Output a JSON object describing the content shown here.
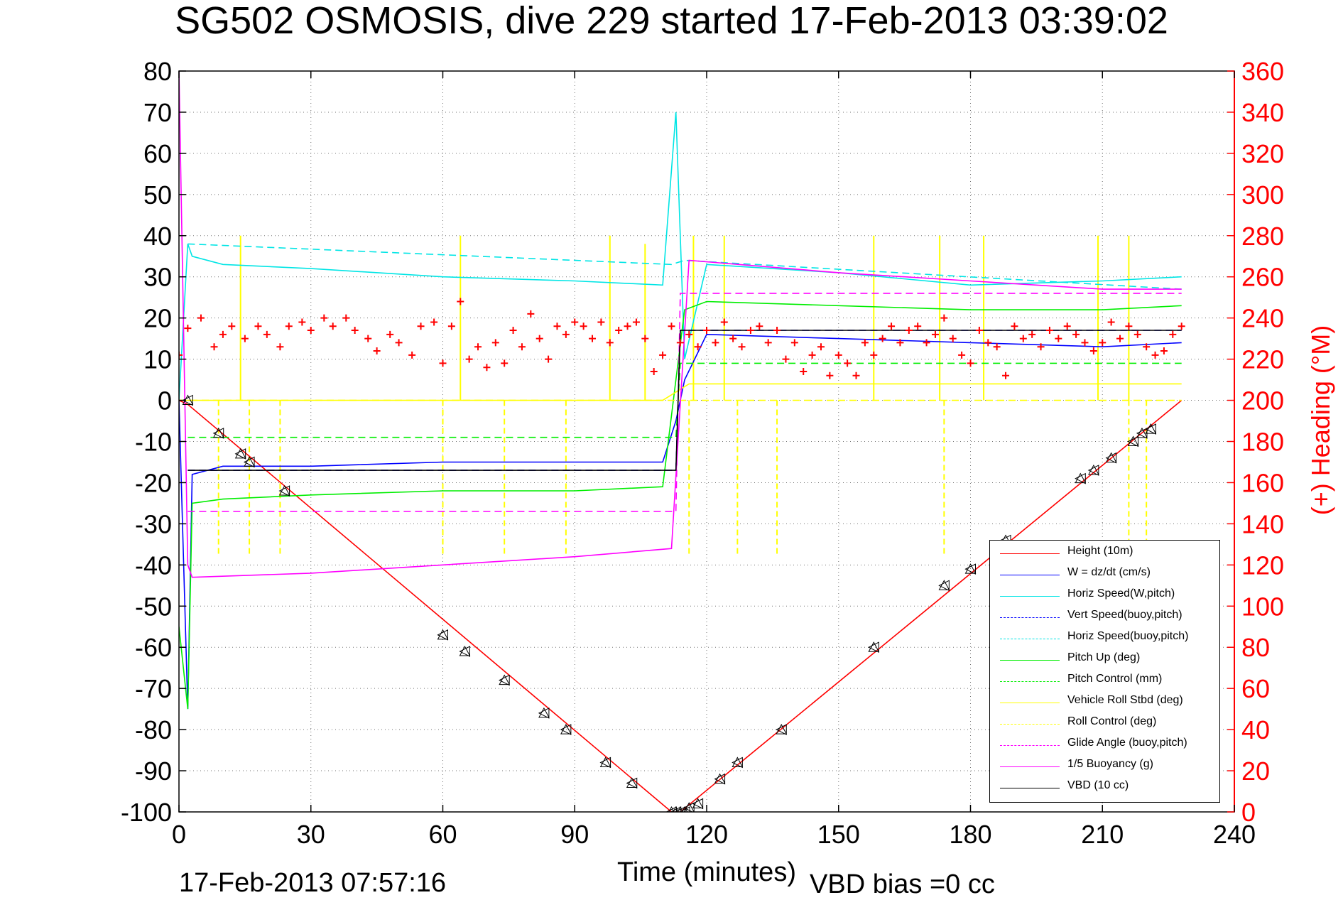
{
  "title": "SG502 OSMOSIS, dive 229 started 17-Feb-2013 03:39:02",
  "footer": {
    "timestamp": "17-Feb-2013 07:57:16",
    "vbd_bias": "VBD bias =0 cc"
  },
  "colors": {
    "height": "#ff0000",
    "w": "#0000ff",
    "cyan": "#00e5e5",
    "green": "#00ee00",
    "yellow": "#ffff00",
    "magenta": "#ff00ff",
    "black": "#000000",
    "heading": "#ff0000"
  },
  "chart_data": {
    "type": "line",
    "xlabel": "Time (minutes)",
    "ylabel_right": "(+) Heading (°M)",
    "xlim": [
      0,
      240
    ],
    "ylim": [
      -100,
      80
    ],
    "y2lim": [
      0,
      360
    ],
    "xticks": [
      0,
      30,
      60,
      90,
      120,
      150,
      180,
      210,
      240
    ],
    "yticks": [
      80,
      70,
      60,
      50,
      40,
      30,
      20,
      10,
      0,
      -10,
      -20,
      -30,
      -40,
      -50,
      -60,
      -70,
      -80,
      -90,
      -100
    ],
    "y2ticks": [
      360,
      340,
      320,
      300,
      280,
      260,
      240,
      220,
      200,
      180,
      160,
      140,
      120,
      100,
      80,
      60,
      40,
      20,
      0
    ],
    "grid": true,
    "legend_position": "lower-right",
    "legend": [
      {
        "label": "Height (10m)",
        "color": "#ff0000",
        "style": "solid"
      },
      {
        "label": "W = dz/dt (cm/s)",
        "color": "#0000ff",
        "style": "solid"
      },
      {
        "label": "Horiz Speed(W,pitch)",
        "color": "#00e5e5",
        "style": "solid"
      },
      {
        "label": "Vert Speed(buoy,pitch)",
        "color": "#0000ff",
        "style": "dashed"
      },
      {
        "label": "Horiz Speed(buoy,pitch)",
        "color": "#00e5e5",
        "style": "dashed"
      },
      {
        "label": "Pitch Up (deg)",
        "color": "#00ee00",
        "style": "solid"
      },
      {
        "label": "Pitch Control (mm)",
        "color": "#00ee00",
        "style": "dashed"
      },
      {
        "label": "Vehicle Roll Stbd (deg)",
        "color": "#ffff00",
        "style": "solid"
      },
      {
        "label": "Roll Control (deg)",
        "color": "#ffff00",
        "style": "dashed"
      },
      {
        "label": "Glide Angle (buoy,pitch)",
        "color": "#ff00ff",
        "style": "dashed"
      },
      {
        "label": "1/5 Buoyancy (g)",
        "color": "#ff00ff",
        "style": "solid"
      },
      {
        "label": "VBD (10 cc)",
        "color": "#000000",
        "style": "solid"
      }
    ],
    "series": [
      {
        "name": "Height (10m)",
        "x": [
          0,
          2,
          112,
          114,
          228
        ],
        "y": [
          0,
          -1,
          -100,
          -100,
          0
        ]
      },
      {
        "name": "W = dz/dt (cm/s)",
        "x": [
          0,
          2,
          3,
          10,
          30,
          60,
          90,
          110,
          113,
          115,
          120,
          150,
          180,
          210,
          228
        ],
        "y": [
          0,
          -75,
          -18,
          -16,
          -16,
          -15,
          -15,
          -15,
          -5,
          5,
          16,
          15,
          14,
          13,
          14
        ]
      },
      {
        "name": "Horiz Speed(W,pitch)",
        "x": [
          0,
          2,
          3,
          10,
          30,
          60,
          90,
          110,
          113,
          115,
          120,
          150,
          180,
          210,
          228
        ],
        "y": [
          0,
          38,
          35,
          33,
          32,
          30,
          29,
          28,
          70,
          10,
          33,
          31,
          28,
          29,
          30
        ]
      },
      {
        "name": "Vert Speed(buoy,pitch)",
        "x": [
          2,
          113,
          114,
          228
        ],
        "y": [
          -17,
          -17,
          17,
          17
        ]
      },
      {
        "name": "Horiz Speed(buoy,pitch)",
        "x": [
          2,
          112,
          115,
          228
        ],
        "y": [
          38,
          33,
          34,
          27
        ]
      },
      {
        "name": "Pitch Up (deg)",
        "x": [
          0,
          2,
          3,
          10,
          30,
          60,
          90,
          110,
          113,
          115,
          120,
          150,
          180,
          210,
          228
        ],
        "y": [
          -55,
          -75,
          -25,
          -24,
          -23,
          -22,
          -22,
          -21,
          5,
          22,
          24,
          23,
          22,
          22,
          23
        ]
      },
      {
        "name": "Pitch Control (mm)",
        "x": [
          2,
          113,
          114,
          228
        ],
        "y": [
          -9,
          -9,
          9,
          9
        ]
      },
      {
        "name": "Vehicle Roll Stbd (deg)",
        "x": [
          0,
          3,
          60,
          110,
          116,
          150,
          228
        ],
        "y": [
          0,
          0,
          0,
          0,
          4,
          4,
          4
        ]
      },
      {
        "name": "Roll Control (deg)",
        "x": [
          0,
          228
        ],
        "y": [
          0,
          0
        ]
      },
      {
        "name": "Glide Angle (buoy,pitch)",
        "x": [
          2,
          113,
          114,
          228
        ],
        "y": [
          -27,
          -27,
          26,
          26
        ]
      },
      {
        "name": "1/5 Buoyancy (g)",
        "x": [
          0,
          2,
          3,
          30,
          60,
          90,
          112,
          116,
          150,
          180,
          210,
          228
        ],
        "y": [
          80,
          -40,
          -43,
          -42,
          -40,
          -38,
          -36,
          34,
          31,
          29,
          27,
          27
        ]
      },
      {
        "name": "VBD (10 cc)",
        "x": [
          2,
          113,
          114,
          228
        ],
        "y": [
          -17,
          -17,
          17,
          17
        ]
      }
    ],
    "heading": {
      "name": "Heading",
      "x": [
        0,
        2,
        5,
        8,
        10,
        12,
        15,
        18,
        20,
        23,
        25,
        28,
        30,
        33,
        35,
        38,
        40,
        43,
        45,
        48,
        50,
        53,
        55,
        58,
        60,
        62,
        64,
        66,
        68,
        70,
        72,
        74,
        76,
        78,
        80,
        82,
        84,
        86,
        88,
        90,
        92,
        94,
        96,
        98,
        100,
        102,
        104,
        106,
        108,
        110,
        112,
        114,
        116,
        118,
        120,
        122,
        124,
        126,
        128,
        130,
        132,
        134,
        136,
        138,
        140,
        142,
        144,
        146,
        148,
        150,
        152,
        154,
        156,
        158,
        160,
        162,
        164,
        166,
        168,
        170,
        172,
        174,
        176,
        178,
        180,
        182,
        184,
        186,
        188,
        190,
        192,
        194,
        196,
        198,
        200,
        202,
        204,
        206,
        208,
        210,
        212,
        214,
        216,
        218,
        220,
        222,
        224,
        226,
        228
      ],
      "y": [
        222,
        235,
        240,
        226,
        232,
        236,
        230,
        236,
        232,
        226,
        236,
        238,
        234,
        240,
        236,
        240,
        234,
        230,
        224,
        232,
        228,
        222,
        236,
        238,
        218,
        236,
        248,
        220,
        226,
        216,
        228,
        218,
        234,
        226,
        242,
        230,
        220,
        236,
        232,
        238,
        236,
        230,
        238,
        228,
        234,
        236,
        238,
        230,
        214,
        222,
        236,
        228,
        232,
        226,
        234,
        228,
        238,
        230,
        226,
        234,
        236,
        228,
        234,
        220,
        228,
        214,
        222,
        226,
        212,
        222,
        218,
        212,
        228,
        222,
        230,
        236,
        228,
        234,
        236,
        228,
        232,
        240,
        230,
        222,
        218,
        234,
        228,
        226,
        212,
        236,
        230,
        232,
        226,
        234,
        230,
        236,
        232,
        228,
        224,
        228,
        238,
        230,
        236,
        232,
        226,
        222,
        224,
        232,
        236
      ]
    },
    "markers": {
      "name": "Sample markers",
      "x": [
        2,
        9,
        14,
        16,
        24,
        60,
        65,
        74,
        83,
        88,
        97,
        103,
        112,
        113,
        114,
        115,
        116,
        118,
        123,
        127,
        137,
        158,
        174,
        180,
        188,
        205,
        208,
        212,
        217,
        219,
        221
      ],
      "y": [
        0,
        -8,
        -13,
        -15,
        -22,
        -57,
        -61,
        -68,
        -76,
        -80,
        -88,
        -93,
        -100,
        -100,
        -100,
        -100,
        -99,
        -98,
        -92,
        -88,
        -80,
        -60,
        -45,
        -41,
        -34,
        -19,
        -17,
        -14,
        -10,
        -8,
        -7
      ]
    },
    "roll_spikes": {
      "name": "Roll control spikes",
      "up_x": [
        14,
        64,
        98,
        106,
        117,
        124,
        158,
        173,
        183,
        209,
        216
      ],
      "up_to": [
        40,
        40,
        40,
        38,
        40,
        40,
        40,
        40,
        40,
        40,
        40
      ],
      "down_x": [
        9,
        16,
        23,
        60,
        74,
        88,
        116,
        127,
        136,
        174,
        216,
        220
      ],
      "down_to": [
        -38,
        -38,
        -38,
        -38,
        -38,
        -38,
        -38,
        -38,
        -38,
        -38,
        -38,
        -38
      ]
    }
  }
}
